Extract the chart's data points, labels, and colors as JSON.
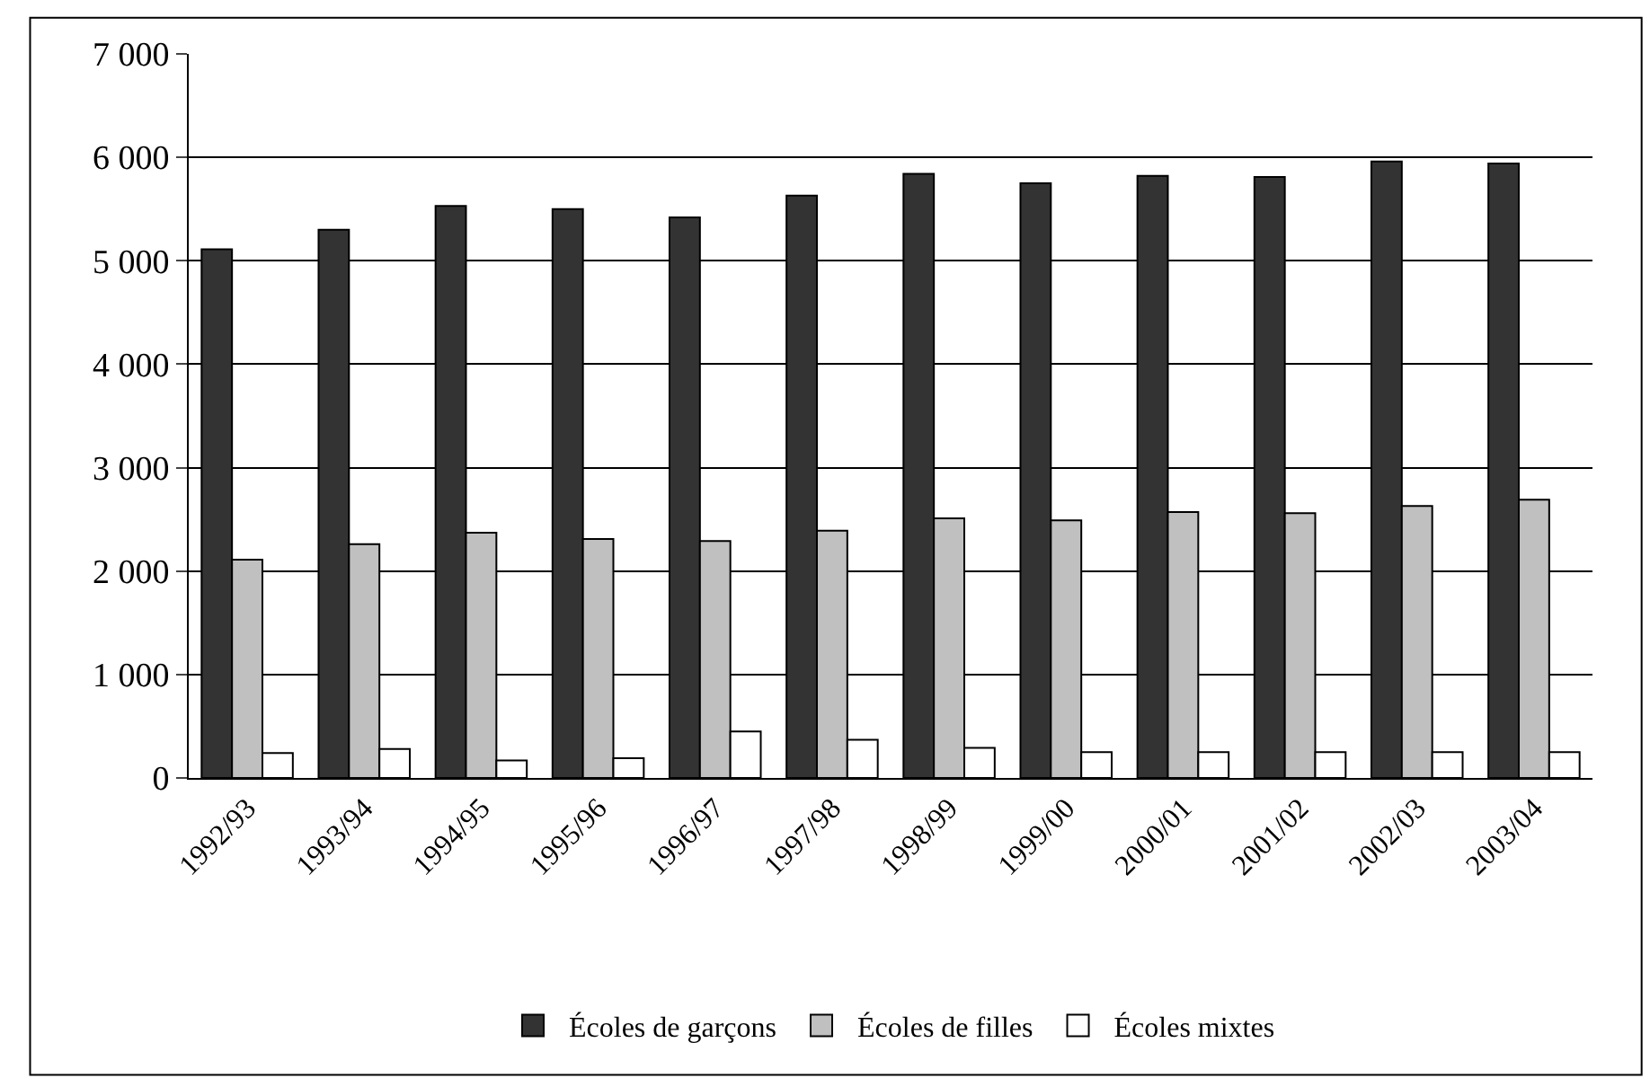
{
  "chart_data": {
    "type": "bar",
    "categories": [
      "1992/93",
      "1993/94",
      "1994/95",
      "1995/96",
      "1996/97",
      "1997/98",
      "1998/99",
      "1999/00",
      "2000/01",
      "2001/02",
      "2002/03",
      "2003/04"
    ],
    "series": [
      {
        "name": "Écoles de garçons",
        "color": "#333333",
        "values": [
          5110,
          5300,
          5530,
          5500,
          5420,
          5630,
          5840,
          5750,
          5820,
          5810,
          5960,
          5940
        ]
      },
      {
        "name": "Écoles de filles",
        "color": "#c0c0c0",
        "values": [
          2110,
          2260,
          2370,
          2310,
          2290,
          2390,
          2510,
          2490,
          2570,
          2560,
          2630,
          2690
        ]
      },
      {
        "name": "Écoles mixtes",
        "color": "#ffffff",
        "values": [
          240,
          280,
          170,
          190,
          450,
          370,
          290,
          250,
          250,
          250,
          250,
          250
        ]
      }
    ],
    "ylim": [
      0,
      7000
    ],
    "yticks": [
      {
        "value": 0,
        "label": "0"
      },
      {
        "value": 1000,
        "label": "1 000"
      },
      {
        "value": 2000,
        "label": "2 000"
      },
      {
        "value": 3000,
        "label": "3 000"
      },
      {
        "value": 4000,
        "label": "4 000"
      },
      {
        "value": 5000,
        "label": "5 000"
      },
      {
        "value": 6000,
        "label": "6 000"
      },
      {
        "value": 7000,
        "label": "7 000"
      }
    ],
    "grid": "y",
    "legend": "bottom"
  }
}
